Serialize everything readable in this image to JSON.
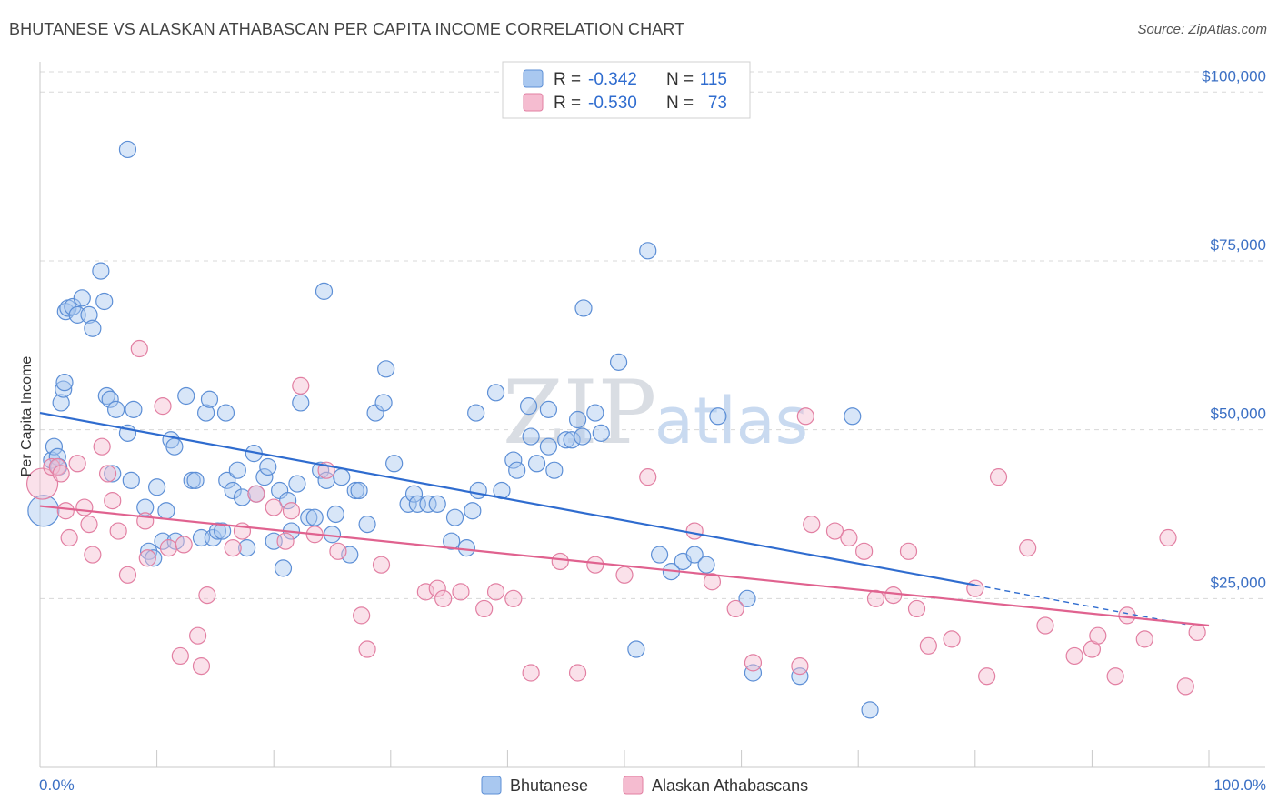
{
  "title": "BHUTANESE VS ALASKAN ATHABASCAN PER CAPITA INCOME CORRELATION CHART",
  "source": "Source: ZipAtlas.com",
  "watermark": {
    "zip": "ZIP",
    "atlas": "atlas"
  },
  "colors": {
    "blue_fill": "#a9c8f0",
    "blue_stroke": "#5d8fd6",
    "blue_line": "#2f6ccf",
    "pink_fill": "#f5bcd0",
    "pink_stroke": "#e27fa2",
    "pink_line": "#e0628f",
    "grid": "#d8d8d8",
    "axis_text": "#3a6fc4"
  },
  "legend": {
    "rows": [
      {
        "r_label": "R =",
        "r_value": "-0.342",
        "n_label": "N =",
        "n_value": "115"
      },
      {
        "r_label": "R =",
        "r_value": "-0.530",
        "n_label": "N =",
        "n_value": "73"
      }
    ]
  },
  "chart_data": {
    "type": "scatter",
    "title": "BHUTANESE VS ALASKAN ATHABASCAN PER CAPITA INCOME CORRELATION CHART",
    "xlabel": "",
    "ylabel": "Per Capita Income",
    "xlim": [
      0,
      100
    ],
    "ylim": [
      0,
      103000
    ],
    "x_tick_labels": [
      "0.0%",
      "100.0%"
    ],
    "y_ticks": [
      25000,
      50000,
      75000,
      100000
    ],
    "y_tick_labels": [
      "$25,000",
      "$50,000",
      "$75,000",
      "$100,000"
    ],
    "grid": "horizontal dashed",
    "legend_position": "bottom-center",
    "series": [
      {
        "name": "Bhutanese",
        "trend": {
          "x0": 0,
          "y0": 52500,
          "x1": 80,
          "y1": 27000,
          "dashed_to_x": 98,
          "dashed_to_y": 21200
        },
        "points": [
          [
            0.3,
            38000
          ],
          [
            1,
            45500
          ],
          [
            1.2,
            47500
          ],
          [
            1.5,
            46000
          ],
          [
            1.6,
            44500
          ],
          [
            1.8,
            54000
          ],
          [
            2,
            56000
          ],
          [
            2.1,
            57000
          ],
          [
            2.2,
            67500
          ],
          [
            2.4,
            68000
          ],
          [
            2.8,
            68200
          ],
          [
            3.2,
            67000
          ],
          [
            3.6,
            69500
          ],
          [
            4.2,
            67000
          ],
          [
            4.5,
            65000
          ],
          [
            5.2,
            73500
          ],
          [
            5.5,
            69000
          ],
          [
            5.7,
            55000
          ],
          [
            6,
            54500
          ],
          [
            6.2,
            43500
          ],
          [
            6.5,
            53000
          ],
          [
            7.5,
            49500
          ],
          [
            7.8,
            42500
          ],
          [
            8,
            53000
          ],
          [
            7.5,
            91500
          ],
          [
            9,
            38500
          ],
          [
            9.3,
            32000
          ],
          [
            9.7,
            31000
          ],
          [
            10,
            41500
          ],
          [
            10.5,
            33500
          ],
          [
            10.8,
            38000
          ],
          [
            11.2,
            48500
          ],
          [
            11.5,
            47500
          ],
          [
            11.6,
            33500
          ],
          [
            12.5,
            55000
          ],
          [
            13,
            42500
          ],
          [
            13.3,
            42500
          ],
          [
            13.8,
            34000
          ],
          [
            14.2,
            52500
          ],
          [
            14.5,
            54500
          ],
          [
            14.8,
            34000
          ],
          [
            15.2,
            35000
          ],
          [
            15.6,
            35000
          ],
          [
            15.9,
            52500
          ],
          [
            16,
            42500
          ],
          [
            16.5,
            41000
          ],
          [
            16.9,
            44000
          ],
          [
            17.3,
            40000
          ],
          [
            17.7,
            32500
          ],
          [
            18.3,
            46500
          ],
          [
            18.5,
            40500
          ],
          [
            19.2,
            43000
          ],
          [
            19.5,
            44500
          ],
          [
            20,
            33500
          ],
          [
            20.5,
            41000
          ],
          [
            20.8,
            29500
          ],
          [
            21.2,
            39500
          ],
          [
            21.5,
            35000
          ],
          [
            22,
            42000
          ],
          [
            22.3,
            54000
          ],
          [
            23,
            37000
          ],
          [
            23.5,
            37000
          ],
          [
            24,
            44000
          ],
          [
            24.5,
            42500
          ],
          [
            25,
            34500
          ],
          [
            25.3,
            37500
          ],
          [
            25.8,
            43000
          ],
          [
            26.5,
            31500
          ],
          [
            27,
            41000
          ],
          [
            27.3,
            41000
          ],
          [
            28,
            36000
          ],
          [
            24.3,
            70500
          ],
          [
            28.7,
            52500
          ],
          [
            29.4,
            54000
          ],
          [
            29.6,
            59000
          ],
          [
            30.3,
            45000
          ],
          [
            31.5,
            39000
          ],
          [
            32,
            40500
          ],
          [
            32.3,
            39000
          ],
          [
            33.2,
            39000
          ],
          [
            34,
            39000
          ],
          [
            35.2,
            33500
          ],
          [
            35.5,
            37000
          ],
          [
            36.5,
            32500
          ],
          [
            37,
            38000
          ],
          [
            37.3,
            52500
          ],
          [
            37.5,
            41000
          ],
          [
            39,
            55500
          ],
          [
            39.5,
            41000
          ],
          [
            40.5,
            45500
          ],
          [
            40.8,
            44000
          ],
          [
            41.8,
            53500
          ],
          [
            42,
            49000
          ],
          [
            42.5,
            45000
          ],
          [
            43.5,
            47500
          ],
          [
            43.5,
            53000
          ],
          [
            44,
            44000
          ],
          [
            45,
            48500
          ],
          [
            45.5,
            48500
          ],
          [
            46,
            51500
          ],
          [
            46.4,
            49000
          ],
          [
            46.5,
            68000
          ],
          [
            47.5,
            52500
          ],
          [
            48,
            49500
          ],
          [
            49.5,
            60000
          ],
          [
            51,
            17500
          ],
          [
            52,
            76500
          ],
          [
            53,
            31500
          ],
          [
            54,
            29000
          ],
          [
            55,
            30500
          ],
          [
            56,
            31500
          ],
          [
            57,
            30000
          ],
          [
            58,
            52000
          ],
          [
            60.5,
            25000
          ],
          [
            61,
            14000
          ],
          [
            65,
            13500
          ],
          [
            69.5,
            52000
          ],
          [
            71,
            8500
          ]
        ]
      },
      {
        "name": "Alaskan Athabascans",
        "trend": {
          "x0": 0,
          "y0": 38700,
          "x1": 100,
          "y1": 21000
        },
        "points": [
          [
            0.2,
            42000
          ],
          [
            1,
            44500
          ],
          [
            1.5,
            44500
          ],
          [
            1.8,
            43500
          ],
          [
            2.2,
            38000
          ],
          [
            2.5,
            34000
          ],
          [
            3.2,
            45000
          ],
          [
            3.8,
            38500
          ],
          [
            4.2,
            36000
          ],
          [
            4.5,
            31500
          ],
          [
            5.3,
            47500
          ],
          [
            5.8,
            43500
          ],
          [
            6.2,
            39500
          ],
          [
            6.7,
            35000
          ],
          [
            7.5,
            28500
          ],
          [
            8.5,
            62000
          ],
          [
            9,
            36500
          ],
          [
            9.2,
            31000
          ],
          [
            10.5,
            53500
          ],
          [
            11,
            32500
          ],
          [
            12,
            16500
          ],
          [
            12.3,
            33000
          ],
          [
            13.5,
            19500
          ],
          [
            13.8,
            15000
          ],
          [
            14.3,
            25500
          ],
          [
            16.5,
            32500
          ],
          [
            17.3,
            35000
          ],
          [
            18.5,
            40500
          ],
          [
            20,
            38500
          ],
          [
            21,
            33500
          ],
          [
            21.5,
            38000
          ],
          [
            22.3,
            56500
          ],
          [
            23.5,
            34500
          ],
          [
            24.5,
            44000
          ],
          [
            25.5,
            32000
          ],
          [
            27.5,
            22500
          ],
          [
            28,
            17500
          ],
          [
            29.2,
            30000
          ],
          [
            33,
            26000
          ],
          [
            34,
            26500
          ],
          [
            34.5,
            25000
          ],
          [
            36,
            26000
          ],
          [
            38,
            23500
          ],
          [
            39,
            26000
          ],
          [
            40.5,
            25000
          ],
          [
            42,
            14000
          ],
          [
            44.5,
            30500
          ],
          [
            46,
            14000
          ],
          [
            47.5,
            30000
          ],
          [
            50,
            28500
          ],
          [
            52,
            43000
          ],
          [
            56,
            35000
          ],
          [
            57.5,
            27500
          ],
          [
            59.5,
            23500
          ],
          [
            61,
            15500
          ],
          [
            65,
            15000
          ],
          [
            65.5,
            52000
          ],
          [
            66,
            36000
          ],
          [
            68,
            35000
          ],
          [
            69.2,
            34000
          ],
          [
            70.5,
            32000
          ],
          [
            71.5,
            25000
          ],
          [
            73,
            25500
          ],
          [
            74.3,
            32000
          ],
          [
            75,
            23500
          ],
          [
            76,
            18000
          ],
          [
            78,
            19000
          ],
          [
            80,
            26500
          ],
          [
            81,
            13500
          ],
          [
            82,
            43000
          ],
          [
            84.5,
            32500
          ],
          [
            86,
            21000
          ],
          [
            88.5,
            16500
          ],
          [
            90,
            17500
          ],
          [
            90.5,
            19500
          ],
          [
            92,
            13500
          ],
          [
            93,
            22500
          ],
          [
            94.5,
            19000
          ],
          [
            96.5,
            34000
          ],
          [
            98,
            12000
          ],
          [
            99,
            20000
          ]
        ]
      }
    ]
  }
}
